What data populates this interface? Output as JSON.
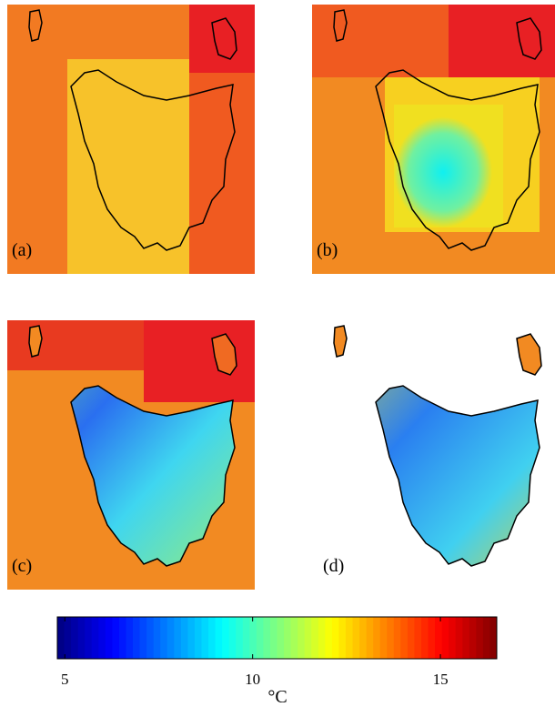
{
  "panels": [
    {
      "label": "(a)"
    },
    {
      "label": "(b)"
    },
    {
      "label": "(c)"
    },
    {
      "label": "(d)"
    }
  ],
  "colorbar": {
    "clim": [
      4.8,
      16.5
    ],
    "ticks": [
      5,
      10,
      15
    ],
    "label": "°C",
    "colormap": "jet"
  }
}
